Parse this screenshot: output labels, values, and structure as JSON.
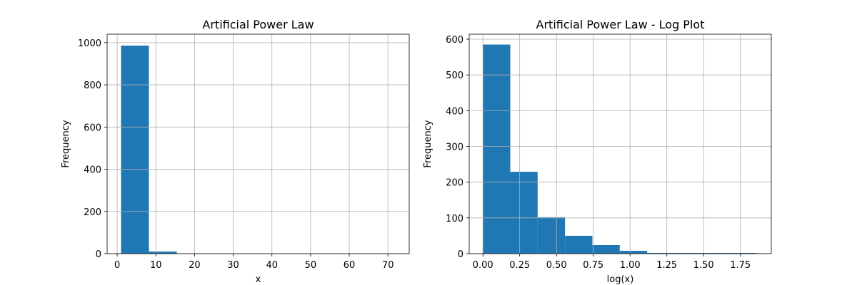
{
  "chart_data": [
    {
      "type": "bar",
      "title": "Artificial Power Law",
      "xlabel": "x",
      "ylabel": "Frequency",
      "xlim": [
        -2.6,
        75.5
      ],
      "ylim": [
        0,
        1040
      ],
      "xticks": [
        0,
        10,
        20,
        30,
        40,
        50,
        60,
        70
      ],
      "yticks": [
        0,
        200,
        400,
        600,
        800,
        1000
      ],
      "grid": true,
      "bar_color": "#1f77b4",
      "bins": [
        {
          "x0": 1.0,
          "x1": 8.2,
          "value": 986
        },
        {
          "x0": 8.2,
          "x1": 15.4,
          "value": 10
        },
        {
          "x0": 15.4,
          "x1": 22.6,
          "value": 1
        },
        {
          "x0": 22.6,
          "x1": 29.8,
          "value": 1
        },
        {
          "x0": 29.8,
          "x1": 37.0,
          "value": 0
        },
        {
          "x0": 37.0,
          "x1": 44.2,
          "value": 0
        },
        {
          "x0": 44.2,
          "x1": 51.4,
          "value": 0
        },
        {
          "x0": 51.4,
          "x1": 58.6,
          "value": 1
        },
        {
          "x0": 58.6,
          "x1": 65.8,
          "value": 0
        },
        {
          "x0": 65.8,
          "x1": 73.0,
          "value": 1
        }
      ]
    },
    {
      "type": "bar",
      "title": "Artificial Power Law - Log Plot",
      "xlabel": "log(x)",
      "ylabel": "Frequency",
      "xlim": [
        -0.093,
        1.96
      ],
      "ylim": [
        0,
        614
      ],
      "xticks": [
        "0.00",
        "0.25",
        "0.50",
        "0.75",
        "1.00",
        "1.25",
        "1.50",
        "1.75"
      ],
      "yticks": [
        0,
        100,
        200,
        300,
        400,
        500,
        600
      ],
      "grid": true,
      "bar_color": "#1f77b4",
      "bins": [
        {
          "x0": 0.0,
          "x1": 0.186,
          "value": 585
        },
        {
          "x0": 0.186,
          "x1": 0.372,
          "value": 229
        },
        {
          "x0": 0.372,
          "x1": 0.558,
          "value": 102
        },
        {
          "x0": 0.558,
          "x1": 0.744,
          "value": 50
        },
        {
          "x0": 0.744,
          "x1": 0.93,
          "value": 24
        },
        {
          "x0": 0.93,
          "x1": 1.116,
          "value": 8
        },
        {
          "x0": 1.116,
          "x1": 1.302,
          "value": 2
        },
        {
          "x0": 1.302,
          "x1": 1.488,
          "value": 2
        },
        {
          "x0": 1.488,
          "x1": 1.674,
          "value": 2
        },
        {
          "x0": 1.674,
          "x1": 1.86,
          "value": 2
        }
      ]
    }
  ]
}
